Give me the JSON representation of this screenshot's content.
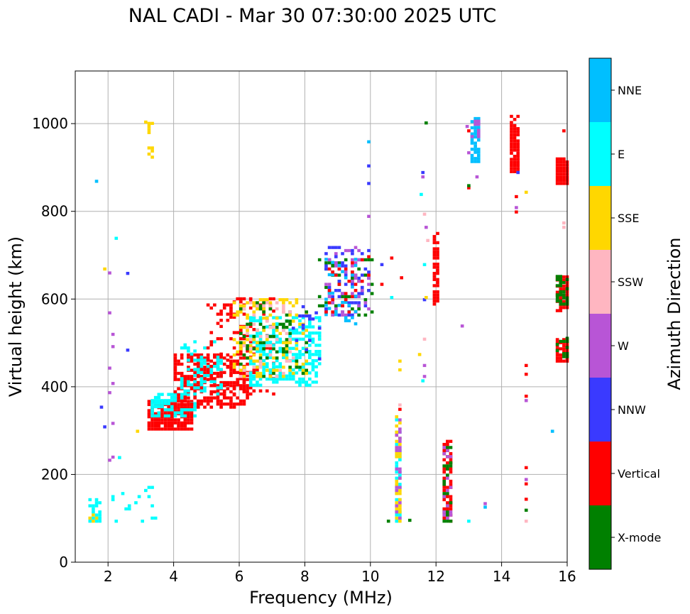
{
  "chart_data": {
    "type": "scatter",
    "title": "NAL CADI - Mar 30 07:30:00 2025 UTC",
    "xlabel": "Frequency (MHz)",
    "ylabel": "Virtual height (km)",
    "xlim": [
      1.0,
      16.0
    ],
    "ylim": [
      0,
      1120
    ],
    "xticks": [
      2,
      4,
      6,
      8,
      10,
      12,
      14,
      16
    ],
    "yticks": [
      0,
      200,
      400,
      600,
      800,
      1000
    ],
    "grid": true,
    "colorbar": {
      "label": "Azimuth Direction",
      "categories": [
        "X-mode",
        "Vertical",
        "NNW",
        "W",
        "SSW",
        "SSE",
        "E",
        "NNE"
      ],
      "colors": {
        "X-mode": "#008000",
        "Vertical": "#ff0000",
        "NNW": "#3a3aff",
        "W": "#b855d6",
        "SSW": "#ffb6c1",
        "SSE": "#ffd700",
        "E": "#00ffff",
        "NNE": "#00bfff"
      }
    },
    "clusters": [
      {
        "category": "Vertical",
        "x": [
          3.2,
          4.5
        ],
        "y": [
          300,
          370
        ],
        "density": 0.85
      },
      {
        "category": "E",
        "x": [
          3.3,
          4.6
        ],
        "y": [
          330,
          380
        ],
        "density": 0.55
      },
      {
        "category": "Vertical",
        "x": [
          4.0,
          6.2
        ],
        "y": [
          350,
          470
        ],
        "density": 0.55
      },
      {
        "category": "E",
        "x": [
          4.2,
          5.4
        ],
        "y": [
          380,
          500
        ],
        "density": 0.25
      },
      {
        "category": "Vertical",
        "x": [
          5.0,
          7.0
        ],
        "y": [
          380,
          600
        ],
        "density": 0.2
      },
      {
        "category": "E",
        "x": [
          6.3,
          8.4
        ],
        "y": [
          400,
          560
        ],
        "density": 0.45
      },
      {
        "category": "SSE",
        "x": [
          5.8,
          8.0
        ],
        "y": [
          420,
          600
        ],
        "density": 0.22
      },
      {
        "category": "X-mode",
        "x": [
          6.0,
          8.0
        ],
        "y": [
          420,
          590
        ],
        "density": 0.12
      },
      {
        "category": "SSW",
        "x": [
          6.0,
          7.6
        ],
        "y": [
          420,
          590
        ],
        "density": 0.12
      },
      {
        "category": "NNW",
        "x": [
          7.6,
          8.4
        ],
        "y": [
          460,
          580
        ],
        "density": 0.1
      },
      {
        "category": "X-mode",
        "x": [
          8.4,
          10.0
        ],
        "y": [
          560,
          690
        ],
        "density": 0.12
      },
      {
        "category": "NNW",
        "x": [
          8.6,
          9.9
        ],
        "y": [
          560,
          720
        ],
        "density": 0.18
      },
      {
        "category": "W",
        "x": [
          8.6,
          9.9
        ],
        "y": [
          560,
          720
        ],
        "density": 0.1
      },
      {
        "category": "NNE",
        "x": [
          8.6,
          9.6
        ],
        "y": [
          540,
          690
        ],
        "density": 0.12
      },
      {
        "category": "Vertical",
        "x": [
          8.6,
          9.9
        ],
        "y": [
          560,
          700
        ],
        "density": 0.06
      },
      {
        "category": "E",
        "x": [
          1.4,
          1.75
        ],
        "y": [
          90,
          140
        ],
        "density": 0.45
      },
      {
        "category": "SSE",
        "x": [
          1.4,
          1.7
        ],
        "y": [
          90,
          130
        ],
        "density": 0.2
      },
      {
        "category": "E",
        "x": [
          2.1,
          3.5
        ],
        "y": [
          90,
          180
        ],
        "density": 0.08
      },
      {
        "category": "W",
        "x": [
          2.0,
          2.2
        ],
        "y": [
          180,
          1010
        ],
        "density": 0.04
      },
      {
        "category": "SSE",
        "x": [
          3.2,
          3.4
        ],
        "y": [
          920,
          1000
        ],
        "density": 0.3
      },
      {
        "category": "E",
        "x": [
          10.75,
          10.95
        ],
        "y": [
          90,
          330
        ],
        "density": 0.5
      },
      {
        "category": "SSE",
        "x": [
          10.75,
          10.95
        ],
        "y": [
          90,
          330
        ],
        "density": 0.4
      },
      {
        "category": "W",
        "x": [
          10.75,
          10.95
        ],
        "y": [
          90,
          330
        ],
        "density": 0.2
      },
      {
        "category": "Vertical",
        "x": [
          12.2,
          12.45
        ],
        "y": [
          90,
          275
        ],
        "density": 0.55
      },
      {
        "category": "X-mode",
        "x": [
          12.2,
          12.45
        ],
        "y": [
          90,
          275
        ],
        "density": 0.25
      },
      {
        "category": "W",
        "x": [
          12.2,
          12.45
        ],
        "y": [
          90,
          275
        ],
        "density": 0.25
      },
      {
        "category": "Vertical",
        "x": [
          11.9,
          12.1
        ],
        "y": [
          585,
          750
        ],
        "density": 0.7
      },
      {
        "category": "Vertical",
        "x": [
          14.25,
          14.5
        ],
        "y": [
          880,
          1020
        ],
        "density": 0.75
      },
      {
        "category": "NNE",
        "x": [
          13.05,
          13.3
        ],
        "y": [
          910,
          1015
        ],
        "density": 0.85
      },
      {
        "category": "W",
        "x": [
          13.05,
          13.3
        ],
        "y": [
          960,
          1015
        ],
        "density": 0.5
      },
      {
        "category": "Vertical",
        "x": [
          15.65,
          16.0
        ],
        "y": [
          860,
          920
        ],
        "density": 0.95
      },
      {
        "category": "Vertical",
        "x": [
          15.65,
          16.0
        ],
        "y": [
          455,
          510
        ],
        "density": 0.8
      },
      {
        "category": "X-mode",
        "x": [
          15.65,
          16.0
        ],
        "y": [
          465,
          510
        ],
        "density": 0.45
      },
      {
        "category": "Vertical",
        "x": [
          15.65,
          16.0
        ],
        "y": [
          570,
          650
        ],
        "density": 0.7
      },
      {
        "category": "X-mode",
        "x": [
          15.65,
          16.0
        ],
        "y": [
          585,
          650
        ],
        "density": 0.4
      }
    ],
    "points": [
      {
        "x": 9.9,
        "y": 955,
        "category": "NNE"
      },
      {
        "x": 9.9,
        "y": 900,
        "category": "NNW"
      },
      {
        "x": 9.9,
        "y": 860,
        "category": "NNW"
      },
      {
        "x": 9.9,
        "y": 785,
        "category": "W"
      },
      {
        "x": 10.3,
        "y": 675,
        "category": "NNW"
      },
      {
        "x": 10.6,
        "y": 690,
        "category": "Vertical"
      },
      {
        "x": 10.3,
        "y": 630,
        "category": "Vertical"
      },
      {
        "x": 10.6,
        "y": 600,
        "category": "E"
      },
      {
        "x": 10.9,
        "y": 645,
        "category": "Vertical"
      },
      {
        "x": 10.85,
        "y": 455,
        "category": "SSE"
      },
      {
        "x": 10.85,
        "y": 435,
        "category": "SSE"
      },
      {
        "x": 10.85,
        "y": 355,
        "category": "SSW"
      },
      {
        "x": 10.85,
        "y": 345,
        "category": "Vertical"
      },
      {
        "x": 10.5,
        "y": 90,
        "category": "X-mode"
      },
      {
        "x": 11.15,
        "y": 92,
        "category": "X-mode"
      },
      {
        "x": 11.45,
        "y": 470,
        "category": "SSE"
      },
      {
        "x": 11.6,
        "y": 420,
        "category": "W"
      },
      {
        "x": 11.6,
        "y": 445,
        "category": "W"
      },
      {
        "x": 11.55,
        "y": 410,
        "category": "E"
      },
      {
        "x": 11.6,
        "y": 505,
        "category": "SSW"
      },
      {
        "x": 11.6,
        "y": 595,
        "category": "NNW"
      },
      {
        "x": 11.5,
        "y": 835,
        "category": "E"
      },
      {
        "x": 11.55,
        "y": 885,
        "category": "NNW"
      },
      {
        "x": 11.55,
        "y": 875,
        "category": "W"
      },
      {
        "x": 11.65,
        "y": 998,
        "category": "X-mode"
      },
      {
        "x": 11.65,
        "y": 760,
        "category": "W"
      },
      {
        "x": 11.6,
        "y": 790,
        "category": "SSW"
      },
      {
        "x": 11.7,
        "y": 730,
        "category": "SSW"
      },
      {
        "x": 11.6,
        "y": 675,
        "category": "E"
      },
      {
        "x": 11.65,
        "y": 600,
        "category": "SSE"
      },
      {
        "x": 12.75,
        "y": 535,
        "category": "W"
      },
      {
        "x": 12.95,
        "y": 850,
        "category": "Vertical"
      },
      {
        "x": 12.95,
        "y": 855,
        "category": "X-mode"
      },
      {
        "x": 13.2,
        "y": 875,
        "category": "W"
      },
      {
        "x": 12.95,
        "y": 930,
        "category": "W"
      },
      {
        "x": 12.9,
        "y": 990,
        "category": "W"
      },
      {
        "x": 12.95,
        "y": 980,
        "category": "Vertical"
      },
      {
        "x": 12.95,
        "y": 90,
        "category": "E"
      },
      {
        "x": 13.45,
        "y": 122,
        "category": "NNE"
      },
      {
        "x": 13.45,
        "y": 130,
        "category": "W"
      },
      {
        "x": 14.45,
        "y": 885,
        "category": "NNW"
      },
      {
        "x": 14.4,
        "y": 830,
        "category": "Vertical"
      },
      {
        "x": 14.4,
        "y": 805,
        "category": "W"
      },
      {
        "x": 14.4,
        "y": 795,
        "category": "Vertical"
      },
      {
        "x": 14.7,
        "y": 840,
        "category": "SSE"
      },
      {
        "x": 14.7,
        "y": 445,
        "category": "Vertical"
      },
      {
        "x": 14.7,
        "y": 425,
        "category": "Vertical"
      },
      {
        "x": 14.7,
        "y": 375,
        "category": "Vertical"
      },
      {
        "x": 14.7,
        "y": 365,
        "category": "W"
      },
      {
        "x": 14.7,
        "y": 212,
        "category": "Vertical"
      },
      {
        "x": 14.7,
        "y": 185,
        "category": "W"
      },
      {
        "x": 14.7,
        "y": 175,
        "category": "Vertical"
      },
      {
        "x": 14.7,
        "y": 140,
        "category": "Vertical"
      },
      {
        "x": 14.7,
        "y": 115,
        "category": "X-mode"
      },
      {
        "x": 14.7,
        "y": 90,
        "category": "SSW"
      },
      {
        "x": 15.5,
        "y": 295,
        "category": "NNE"
      },
      {
        "x": 15.85,
        "y": 980,
        "category": "Vertical"
      },
      {
        "x": 15.85,
        "y": 770,
        "category": "SSW"
      },
      {
        "x": 15.85,
        "y": 760,
        "category": "SSW"
      },
      {
        "x": 1.6,
        "y": 865,
        "category": "NNE"
      },
      {
        "x": 2.2,
        "y": 735,
        "category": "E"
      },
      {
        "x": 1.85,
        "y": 665,
        "category": "SSE"
      },
      {
        "x": 2.55,
        "y": 655,
        "category": "NNW"
      },
      {
        "x": 2.55,
        "y": 480,
        "category": "NNW"
      },
      {
        "x": 1.75,
        "y": 350,
        "category": "NNW"
      },
      {
        "x": 1.85,
        "y": 305,
        "category": "NNW"
      },
      {
        "x": 2.3,
        "y": 235,
        "category": "E"
      },
      {
        "x": 3.1,
        "y": 1000,
        "category": "SSE"
      },
      {
        "x": 2.85,
        "y": 295,
        "category": "SSE"
      }
    ]
  }
}
